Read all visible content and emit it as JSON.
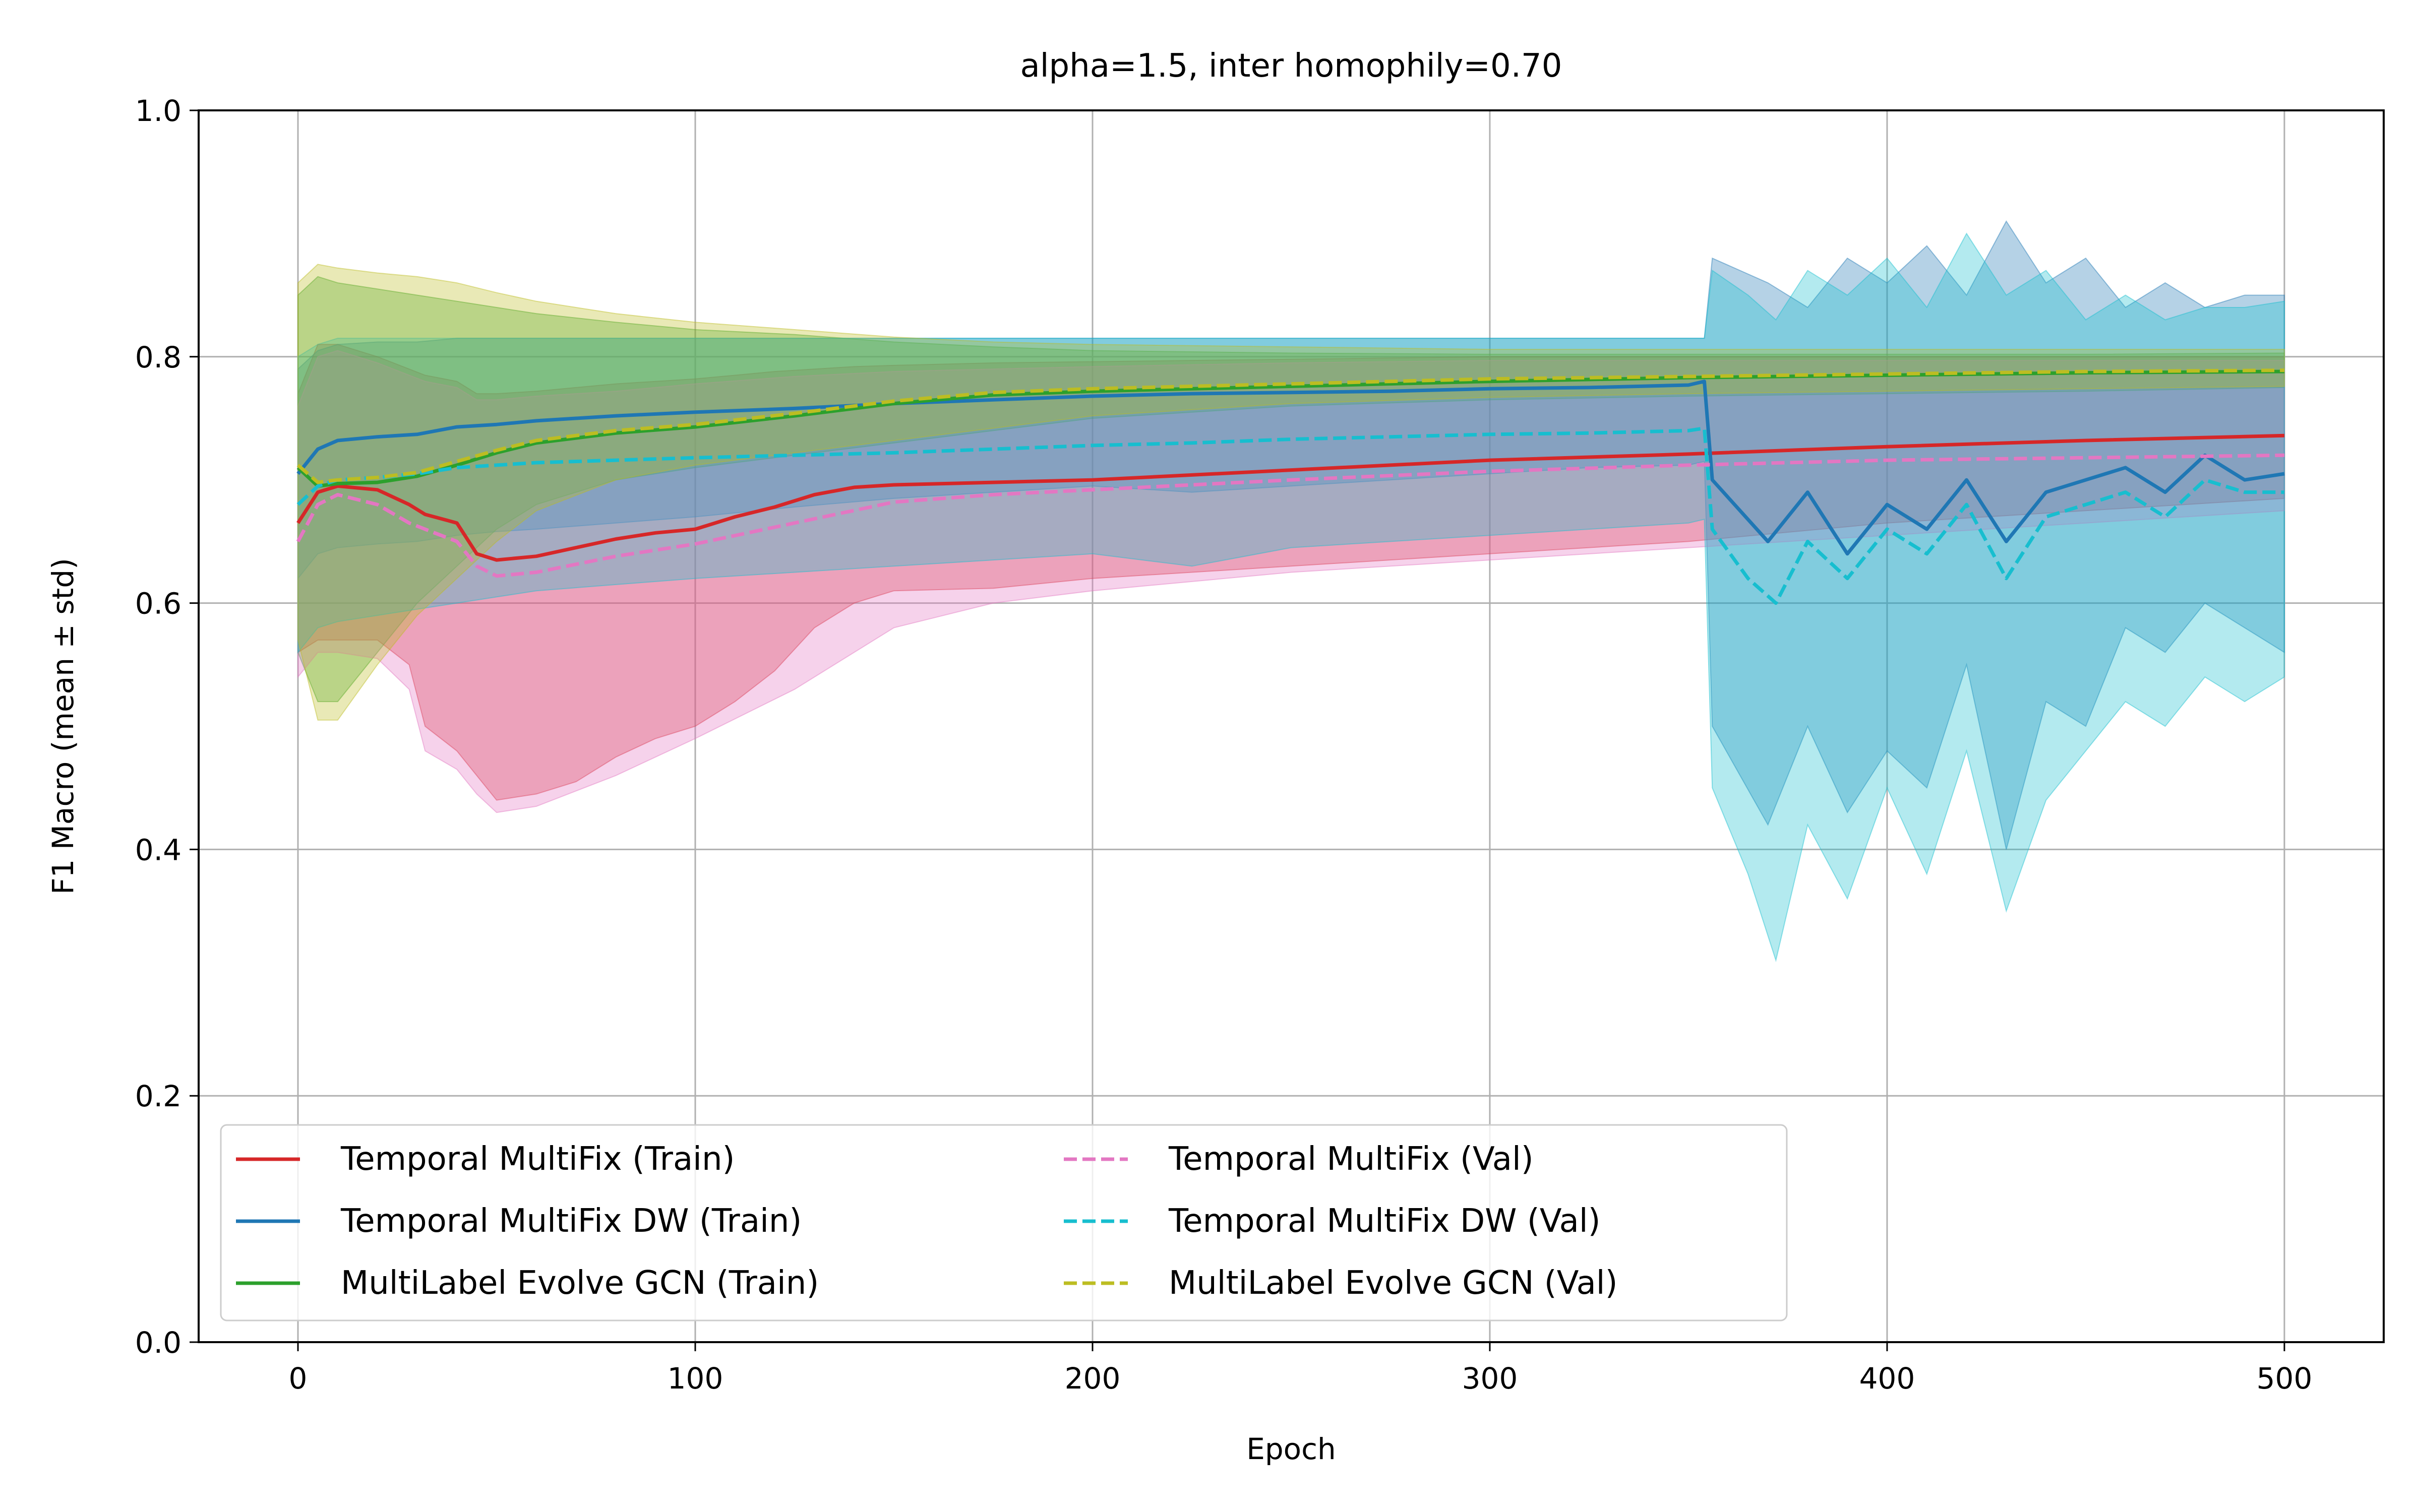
{
  "chart_data": {
    "type": "line",
    "title": "alpha=1.5, inter homophily=0.70",
    "xlabel": "Epoch",
    "ylabel": "F1 Macro (mean ± std)",
    "xlim": [
      -25,
      525
    ],
    "ylim": [
      0.0,
      1.0
    ],
    "xticks": [
      0,
      100,
      200,
      300,
      400,
      500
    ],
    "xtick_labels": [
      "0",
      "100",
      "200",
      "300",
      "400",
      "500"
    ],
    "yticks": [
      0.0,
      0.2,
      0.4,
      0.6,
      0.8,
      1.0
    ],
    "ytick_labels": [
      "0.0",
      "0.2",
      "0.4",
      "0.6",
      "0.8",
      "1.0"
    ],
    "grid": true,
    "legend": {
      "placement": "lower-left",
      "columns": 2
    },
    "series": [
      {
        "name": "Temporal MultiFix (Train)",
        "color": "#d62728",
        "dash": "solid",
        "x": [
          0,
          5,
          10,
          20,
          28,
          32,
          40,
          45,
          50,
          60,
          70,
          80,
          90,
          100,
          110,
          120,
          130,
          140,
          150,
          175,
          200,
          250,
          300,
          350,
          400,
          450,
          500
        ],
        "mean": [
          0.665,
          0.69,
          0.695,
          0.692,
          0.68,
          0.672,
          0.665,
          0.64,
          0.635,
          0.638,
          0.645,
          0.652,
          0.657,
          0.66,
          0.67,
          0.678,
          0.688,
          0.694,
          0.696,
          0.698,
          0.7,
          0.708,
          0.716,
          0.721,
          0.727,
          0.732,
          0.736
        ],
        "lower": [
          0.56,
          0.57,
          0.57,
          0.57,
          0.55,
          0.5,
          0.48,
          0.46,
          0.44,
          0.445,
          0.455,
          0.475,
          0.49,
          0.5,
          0.52,
          0.545,
          0.58,
          0.6,
          0.61,
          0.612,
          0.62,
          0.63,
          0.64,
          0.65,
          0.665,
          0.675,
          0.685
        ],
        "upper": [
          0.77,
          0.81,
          0.81,
          0.8,
          0.79,
          0.785,
          0.78,
          0.77,
          0.77,
          0.772,
          0.775,
          0.778,
          0.78,
          0.782,
          0.785,
          0.788,
          0.79,
          0.792,
          0.793,
          0.795,
          0.796,
          0.798,
          0.8,
          0.8,
          0.8,
          0.8,
          0.8
        ]
      },
      {
        "name": "Temporal MultiFix DW (Train)",
        "color": "#1f77b4",
        "dash": "solid",
        "x": [
          0,
          5,
          10,
          20,
          30,
          40,
          50,
          60,
          80,
          100,
          125,
          150,
          175,
          200,
          225,
          250,
          275,
          300,
          325,
          350,
          354,
          356,
          370,
          380,
          390,
          400,
          410,
          420,
          430,
          440,
          450,
          460,
          470,
          480,
          490,
          500
        ],
        "mean": [
          0.705,
          0.725,
          0.732,
          0.735,
          0.737,
          0.743,
          0.745,
          0.748,
          0.752,
          0.755,
          0.758,
          0.762,
          0.765,
          0.768,
          0.77,
          0.771,
          0.772,
          0.774,
          0.775,
          0.777,
          0.78,
          0.7,
          0.65,
          0.69,
          0.64,
          0.68,
          0.66,
          0.7,
          0.65,
          0.69,
          0.7,
          0.71,
          0.69,
          0.72,
          0.7,
          0.705
        ],
        "lower": [
          0.62,
          0.64,
          0.645,
          0.648,
          0.65,
          0.655,
          0.658,
          0.66,
          0.665,
          0.67,
          0.678,
          0.685,
          0.69,
          0.695,
          0.69,
          0.695,
          0.7,
          0.705,
          0.71,
          0.712,
          0.715,
          0.5,
          0.42,
          0.5,
          0.43,
          0.48,
          0.45,
          0.55,
          0.4,
          0.52,
          0.5,
          0.58,
          0.56,
          0.6,
          0.58,
          0.56
        ],
        "upper": [
          0.79,
          0.805,
          0.81,
          0.812,
          0.812,
          0.815,
          0.815,
          0.815,
          0.815,
          0.815,
          0.815,
          0.815,
          0.815,
          0.815,
          0.815,
          0.815,
          0.815,
          0.815,
          0.815,
          0.815,
          0.815,
          0.88,
          0.86,
          0.84,
          0.88,
          0.86,
          0.89,
          0.85,
          0.91,
          0.86,
          0.88,
          0.84,
          0.86,
          0.84,
          0.85,
          0.85
        ]
      },
      {
        "name": "MultiLabel Evolve GCN (Train)",
        "color": "#2ca02c",
        "dash": "solid",
        "x": [
          0,
          5,
          10,
          20,
          30,
          40,
          50,
          60,
          80,
          100,
          125,
          150,
          175,
          200,
          250,
          300,
          350,
          400,
          450,
          500
        ],
        "mean": [
          0.71,
          0.695,
          0.697,
          0.698,
          0.703,
          0.712,
          0.722,
          0.73,
          0.738,
          0.743,
          0.752,
          0.762,
          0.769,
          0.772,
          0.776,
          0.78,
          0.783,
          0.785,
          0.787,
          0.788
        ],
        "lower": [
          0.56,
          0.52,
          0.52,
          0.56,
          0.6,
          0.63,
          0.66,
          0.68,
          0.7,
          0.71,
          0.72,
          0.73,
          0.74,
          0.75,
          0.76,
          0.765,
          0.768,
          0.77,
          0.772,
          0.775
        ],
        "upper": [
          0.85,
          0.865,
          0.86,
          0.855,
          0.85,
          0.845,
          0.84,
          0.835,
          0.828,
          0.822,
          0.818,
          0.812,
          0.808,
          0.805,
          0.803,
          0.802,
          0.802,
          0.802,
          0.802,
          0.803
        ]
      },
      {
        "name": "Temporal MultiFix (Val)",
        "color": "#e377c2",
        "dash": "dashed",
        "x": [
          0,
          5,
          10,
          20,
          28,
          32,
          40,
          45,
          50,
          60,
          80,
          100,
          125,
          150,
          175,
          200,
          250,
          300,
          350,
          400,
          450,
          500
        ],
        "mean": [
          0.65,
          0.68,
          0.688,
          0.68,
          0.665,
          0.66,
          0.65,
          0.63,
          0.622,
          0.625,
          0.638,
          0.648,
          0.665,
          0.682,
          0.688,
          0.692,
          0.7,
          0.707,
          0.712,
          0.716,
          0.718,
          0.72
        ],
        "lower": [
          0.54,
          0.56,
          0.56,
          0.555,
          0.53,
          0.48,
          0.465,
          0.445,
          0.43,
          0.435,
          0.46,
          0.49,
          0.53,
          0.58,
          0.6,
          0.61,
          0.625,
          0.635,
          0.645,
          0.655,
          0.665,
          0.675
        ],
        "upper": [
          0.76,
          0.8,
          0.805,
          0.795,
          0.785,
          0.78,
          0.775,
          0.765,
          0.765,
          0.768,
          0.772,
          0.778,
          0.784,
          0.788,
          0.79,
          0.792,
          0.795,
          0.797,
          0.797,
          0.797,
          0.797,
          0.797
        ]
      },
      {
        "name": "Temporal MultiFix DW (Val)",
        "color": "#17becf",
        "dash": "dashed",
        "x": [
          0,
          5,
          10,
          20,
          30,
          40,
          50,
          60,
          80,
          100,
          125,
          150,
          175,
          200,
          225,
          250,
          275,
          300,
          325,
          350,
          354,
          356,
          365,
          372,
          380,
          390,
          400,
          410,
          420,
          430,
          440,
          450,
          460,
          470,
          480,
          490,
          500
        ],
        "mean": [
          0.68,
          0.695,
          0.7,
          0.702,
          0.705,
          0.71,
          0.712,
          0.714,
          0.716,
          0.718,
          0.72,
          0.722,
          0.725,
          0.728,
          0.73,
          0.733,
          0.735,
          0.737,
          0.738,
          0.74,
          0.742,
          0.66,
          0.62,
          0.6,
          0.65,
          0.62,
          0.66,
          0.64,
          0.68,
          0.62,
          0.67,
          0.68,
          0.69,
          0.67,
          0.7,
          0.69,
          0.69
        ],
        "lower": [
          0.56,
          0.58,
          0.585,
          0.59,
          0.595,
          0.6,
          0.605,
          0.61,
          0.615,
          0.62,
          0.625,
          0.63,
          0.635,
          0.64,
          0.63,
          0.645,
          0.65,
          0.655,
          0.66,
          0.665,
          0.668,
          0.45,
          0.38,
          0.31,
          0.42,
          0.36,
          0.45,
          0.38,
          0.48,
          0.35,
          0.44,
          0.48,
          0.52,
          0.5,
          0.54,
          0.52,
          0.54
        ],
        "upper": [
          0.8,
          0.81,
          0.815,
          0.815,
          0.815,
          0.815,
          0.815,
          0.815,
          0.815,
          0.815,
          0.815,
          0.815,
          0.815,
          0.815,
          0.815,
          0.815,
          0.815,
          0.815,
          0.815,
          0.815,
          0.815,
          0.87,
          0.85,
          0.83,
          0.87,
          0.85,
          0.88,
          0.84,
          0.9,
          0.85,
          0.87,
          0.83,
          0.85,
          0.83,
          0.84,
          0.84,
          0.845
        ]
      },
      {
        "name": "MultiLabel Evolve GCN (Val)",
        "color": "#bcbd22",
        "dash": "dashed",
        "x": [
          0,
          5,
          10,
          20,
          30,
          40,
          50,
          60,
          80,
          100,
          125,
          150,
          175,
          200,
          250,
          300,
          350,
          400,
          450,
          500
        ],
        "mean": [
          0.712,
          0.698,
          0.7,
          0.702,
          0.706,
          0.715,
          0.724,
          0.732,
          0.74,
          0.745,
          0.754,
          0.764,
          0.771,
          0.774,
          0.778,
          0.782,
          0.784,
          0.786,
          0.788,
          0.789
        ],
        "lower": [
          0.57,
          0.505,
          0.505,
          0.55,
          0.59,
          0.62,
          0.65,
          0.675,
          0.7,
          0.712,
          0.722,
          0.732,
          0.742,
          0.752,
          0.762,
          0.767,
          0.77,
          0.772,
          0.774,
          0.776
        ],
        "upper": [
          0.86,
          0.875,
          0.872,
          0.868,
          0.865,
          0.86,
          0.852,
          0.845,
          0.835,
          0.828,
          0.822,
          0.816,
          0.812,
          0.81,
          0.808,
          0.806,
          0.806,
          0.806,
          0.806,
          0.806
        ]
      }
    ]
  }
}
